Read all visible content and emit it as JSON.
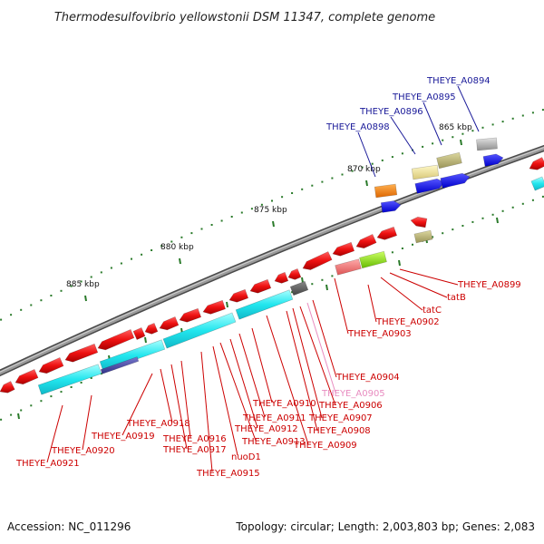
{
  "title": "Thermodesulfovibrio yellowstonii DSM 11347, complete genome",
  "footer": {
    "accession": "Accession: NC_011296",
    "topology": "Topology: circular; Length: 2,003,803 bp; Genes: 2,083"
  },
  "scale": [
    "865 kbp",
    "870 kbp",
    "875 kbp",
    "880 kbp",
    "885 kbp"
  ],
  "colors": {
    "backbone": "#7f7f7f",
    "label_red": "#cc0000",
    "label_blue": "#1a1a99",
    "label_pink": "#e88cc0",
    "tick_green": "#2a7a2a"
  },
  "labels": [
    {
      "text": "THEYE_A0894",
      "color": "blue"
    },
    {
      "text": "THEYE_A0895",
      "color": "blue"
    },
    {
      "text": "THEYE_A0896",
      "color": "blue"
    },
    {
      "text": "THEYE_A0898",
      "color": "blue"
    },
    {
      "text": "THEYE_A0899",
      "color": "red"
    },
    {
      "text": "tatB",
      "color": "red"
    },
    {
      "text": "tatC",
      "color": "red"
    },
    {
      "text": "THEYE_A0902",
      "color": "red"
    },
    {
      "text": "THEYE_A0903",
      "color": "red"
    },
    {
      "text": "THEYE_A0904",
      "color": "red"
    },
    {
      "text": "THEYE_A0905",
      "color": "pink"
    },
    {
      "text": "THEYE_A0906",
      "color": "red"
    },
    {
      "text": "THEYE_A0907",
      "color": "red"
    },
    {
      "text": "THEYE_A0908",
      "color": "red"
    },
    {
      "text": "THEYE_A0909",
      "color": "red"
    },
    {
      "text": "THEYE_A0910",
      "color": "red"
    },
    {
      "text": "THEYE_A0911",
      "color": "red"
    },
    {
      "text": "THEYE_A0912",
      "color": "red"
    },
    {
      "text": "THEYE_A0913",
      "color": "red"
    },
    {
      "text": "nuoD1",
      "color": "red"
    },
    {
      "text": "THEYE_A0915",
      "color": "red"
    },
    {
      "text": "THEYE_A0916",
      "color": "red"
    },
    {
      "text": "THEYE_A0917",
      "color": "red"
    },
    {
      "text": "THEYE_A0918",
      "color": "red"
    },
    {
      "text": "THEYE_A0919",
      "color": "red"
    },
    {
      "text": "THEYE_A0920",
      "color": "red"
    },
    {
      "text": "THEYE_A0921",
      "color": "red"
    }
  ]
}
